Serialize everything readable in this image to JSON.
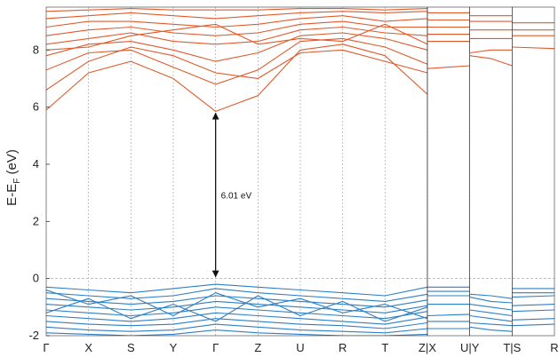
{
  "chart_data": {
    "type": "line",
    "ylabel": {
      "main": "E-E",
      "sub": "F",
      "unit": " (eV)"
    },
    "ylim": [
      -2,
      9.5
    ],
    "yticks": [
      -2,
      0,
      2,
      4,
      6,
      8
    ],
    "fermi_level": 0,
    "grid": "dashed vertical lines at high-symmetry points; dashed horizontal line at 0",
    "kpoints": [
      "Γ",
      "X",
      "S",
      "Y",
      "Γ",
      "Z",
      "U",
      "R",
      "T",
      "Z|X",
      "U|Y",
      "T|S",
      "R"
    ],
    "panels": [
      {
        "x_range": [
          0,
          9
        ]
      },
      {
        "x_range": [
          9,
          10
        ]
      },
      {
        "x_range": [
          10,
          11
        ]
      },
      {
        "x_range": [
          11,
          12
        ]
      }
    ],
    "gap_annotation": {
      "label": "6.01 eV",
      "x": 4,
      "from": 0,
      "to": 5.85
    },
    "colors": {
      "conduction": "#e05a2b",
      "valence": "#2e7fc4",
      "axis": "#333333",
      "grid": "#aaaaaa"
    },
    "series": [
      {
        "band": "conduction",
        "x": [
          0,
          1,
          2,
          3,
          4,
          5,
          6,
          7,
          8,
          9
        ],
        "y": [
          5.9,
          7.2,
          7.6,
          7.0,
          5.85,
          6.4,
          8.0,
          8.2,
          7.8,
          6.45
        ]
      },
      {
        "band": "conduction",
        "x": [
          0,
          1,
          2,
          3,
          4,
          5,
          6,
          7,
          8,
          9
        ],
        "y": [
          7.3,
          7.9,
          8.0,
          7.4,
          6.8,
          7.3,
          8.3,
          8.4,
          8.1,
          7.5
        ]
      },
      {
        "band": "conduction",
        "x": [
          0,
          1,
          2,
          3,
          4,
          5,
          6,
          7,
          8,
          9
        ],
        "y": [
          7.8,
          8.2,
          8.3,
          8.0,
          7.6,
          7.9,
          8.5,
          8.6,
          8.4,
          8.0
        ]
      },
      {
        "band": "conduction",
        "x": [
          0,
          1,
          2,
          3,
          4,
          5,
          6,
          7,
          8,
          9
        ],
        "y": [
          8.2,
          8.4,
          8.6,
          8.3,
          8.2,
          8.3,
          8.7,
          8.8,
          8.6,
          8.5
        ]
      },
      {
        "band": "conduction",
        "x": [
          0,
          1,
          2,
          3,
          4,
          5,
          6,
          7,
          8,
          9
        ],
        "y": [
          8.5,
          8.7,
          8.8,
          8.6,
          8.5,
          8.6,
          8.9,
          9.0,
          8.8,
          8.8
        ]
      },
      {
        "band": "conduction",
        "x": [
          0,
          1,
          2,
          3,
          4,
          5,
          6,
          7,
          8,
          9
        ],
        "y": [
          8.8,
          9.0,
          9.0,
          8.9,
          8.8,
          8.9,
          9.1,
          9.2,
          9.0,
          9.1
        ]
      },
      {
        "band": "conduction",
        "x": [
          0,
          1,
          2,
          3,
          4,
          5,
          6,
          7,
          8,
          9
        ],
        "y": [
          9.1,
          9.2,
          9.3,
          9.2,
          9.1,
          9.2,
          9.3,
          9.35,
          9.3,
          9.35
        ]
      },
      {
        "band": "conduction",
        "x": [
          0,
          1,
          2,
          3,
          4,
          5,
          6,
          7,
          8,
          9
        ],
        "y": [
          9.35,
          9.4,
          9.45,
          9.4,
          9.4,
          9.4,
          9.45,
          9.45,
          9.4,
          9.45
        ]
      },
      {
        "band": "conduction",
        "x": [
          0,
          1,
          2,
          3,
          4,
          5,
          6,
          7,
          8,
          9
        ],
        "y": [
          6.6,
          7.6,
          8.1,
          7.8,
          7.2,
          7.0,
          7.9,
          8.0,
          7.6,
          7.2
        ]
      },
      {
        "band": "conduction",
        "x": [
          0,
          1,
          2,
          3,
          4,
          5,
          6,
          7,
          8,
          9
        ],
        "y": [
          8.0,
          8.1,
          8.5,
          8.7,
          8.9,
          8.2,
          8.4,
          8.3,
          8.9,
          8.2
        ]
      },
      {
        "band": "conduction",
        "x": [
          9,
          10
        ],
        "y": [
          7.35,
          7.45
        ]
      },
      {
        "band": "conduction",
        "x": [
          9,
          10
        ],
        "y": [
          8.3,
          8.3
        ]
      },
      {
        "band": "conduction",
        "x": [
          9,
          10
        ],
        "y": [
          8.55,
          8.55
        ]
      },
      {
        "band": "conduction",
        "x": [
          9,
          10
        ],
        "y": [
          8.8,
          8.8
        ]
      },
      {
        "band": "conduction",
        "x": [
          9,
          10
        ],
        "y": [
          9.05,
          9.05
        ]
      },
      {
        "band": "conduction",
        "x": [
          9,
          10
        ],
        "y": [
          9.3,
          9.3
        ]
      },
      {
        "band": "conduction",
        "x": [
          10,
          10.5,
          11
        ],
        "y": [
          7.8,
          7.7,
          7.45
        ]
      },
      {
        "band": "conduction",
        "x": [
          10,
          10.5,
          11
        ],
        "y": [
          7.9,
          8.0,
          8.0
        ]
      },
      {
        "band": "conduction",
        "x": [
          10,
          10.5,
          11
        ],
        "y": [
          8.4,
          8.4,
          8.4
        ]
      },
      {
        "band": "conduction",
        "x": [
          10,
          10.5,
          11
        ],
        "y": [
          8.7,
          8.7,
          8.7
        ]
      },
      {
        "band": "conduction",
        "x": [
          10,
          10.5,
          11
        ],
        "y": [
          9.0,
          9.0,
          9.0
        ]
      },
      {
        "band": "conduction",
        "x": [
          10,
          10.5,
          11
        ],
        "y": [
          9.2,
          9.2,
          9.2
        ]
      },
      {
        "band": "conduction",
        "x": [
          11,
          12
        ],
        "y": [
          8.1,
          8.05
        ]
      },
      {
        "band": "conduction",
        "x": [
          11,
          12
        ],
        "y": [
          8.5,
          8.5
        ]
      },
      {
        "band": "conduction",
        "x": [
          11,
          12
        ],
        "y": [
          8.7,
          8.7
        ]
      },
      {
        "band": "conduction",
        "x": [
          11,
          12
        ],
        "y": [
          8.95,
          8.95
        ]
      },
      {
        "band": "valence",
        "x": [
          0,
          1,
          2,
          3,
          4,
          5,
          6,
          7,
          8,
          9
        ],
        "y": [
          -0.3,
          -0.4,
          -0.5,
          -0.35,
          -0.2,
          -0.3,
          -0.4,
          -0.5,
          -0.6,
          -0.3
        ]
      },
      {
        "band": "valence",
        "x": [
          0,
          1,
          2,
          3,
          4,
          5,
          6,
          7,
          8,
          9
        ],
        "y": [
          -0.5,
          -0.6,
          -0.7,
          -0.6,
          -0.35,
          -0.5,
          -0.6,
          -0.7,
          -0.8,
          -0.55
        ]
      },
      {
        "band": "valence",
        "x": [
          0,
          1,
          2,
          3,
          4,
          5,
          6,
          7,
          8,
          9
        ],
        "y": [
          -0.7,
          -0.8,
          -0.9,
          -0.8,
          -0.6,
          -0.7,
          -0.8,
          -0.9,
          -1.0,
          -0.75
        ]
      },
      {
        "band": "valence",
        "x": [
          0,
          1,
          2,
          3,
          4,
          5,
          6,
          7,
          8,
          9
        ],
        "y": [
          -0.9,
          -1.0,
          -1.1,
          -1.0,
          -0.8,
          -0.9,
          -1.0,
          -1.1,
          -1.2,
          -0.95
        ]
      },
      {
        "band": "valence",
        "x": [
          0,
          1,
          2,
          3,
          4,
          5,
          6,
          7,
          8,
          9
        ],
        "y": [
          -1.1,
          -1.2,
          -1.3,
          -1.2,
          -1.0,
          -1.1,
          -1.2,
          -1.3,
          -1.4,
          -1.15
        ]
      },
      {
        "band": "valence",
        "x": [
          0,
          1,
          2,
          3,
          4,
          5,
          6,
          7,
          8,
          9
        ],
        "y": [
          -1.3,
          -1.4,
          -1.5,
          -1.4,
          -1.2,
          -1.3,
          -1.4,
          -1.5,
          -1.6,
          -1.35
        ]
      },
      {
        "band": "valence",
        "x": [
          0,
          1,
          2,
          3,
          4,
          5,
          6,
          7,
          8,
          9
        ],
        "y": [
          -1.5,
          -1.6,
          -1.65,
          -1.6,
          -1.4,
          -1.5,
          -1.6,
          -1.65,
          -1.75,
          -1.55
        ]
      },
      {
        "band": "valence",
        "x": [
          0,
          1,
          2,
          3,
          4,
          5,
          6,
          7,
          8,
          9
        ],
        "y": [
          -1.7,
          -1.8,
          -1.85,
          -1.8,
          -1.6,
          -1.7,
          -1.8,
          -1.85,
          -1.9,
          -1.75
        ]
      },
      {
        "band": "valence",
        "x": [
          0,
          1,
          2,
          3,
          4,
          5,
          6,
          7,
          8,
          9
        ],
        "y": [
          -1.9,
          -1.95,
          -2.0,
          -1.95,
          -1.8,
          -1.9,
          -1.95,
          -2.0,
          -2.0,
          -1.95
        ]
      },
      {
        "band": "valence",
        "x": [
          0,
          1,
          2,
          3,
          4,
          5,
          6,
          7,
          8,
          9
        ],
        "y": [
          -0.4,
          -0.9,
          -0.6,
          -1.3,
          -0.5,
          -1.0,
          -0.7,
          -1.2,
          -0.9,
          -1.4
        ]
      },
      {
        "band": "valence",
        "x": [
          0,
          1,
          2,
          3,
          4,
          5,
          6,
          7,
          8,
          9
        ],
        "y": [
          -1.2,
          -0.7,
          -1.4,
          -0.9,
          -1.5,
          -0.6,
          -1.3,
          -0.8,
          -1.5,
          -1.0
        ]
      },
      {
        "band": "valence",
        "x": [
          9,
          10
        ],
        "y": [
          -0.3,
          -0.3
        ]
      },
      {
        "band": "valence",
        "x": [
          9,
          10
        ],
        "y": [
          -0.45,
          -0.45
        ]
      },
      {
        "band": "valence",
        "x": [
          9,
          10
        ],
        "y": [
          -0.6,
          -0.6
        ]
      },
      {
        "band": "valence",
        "x": [
          9,
          10
        ],
        "y": [
          -0.9,
          -0.9
        ]
      },
      {
        "band": "valence",
        "x": [
          9,
          10
        ],
        "y": [
          -1.3,
          -1.25
        ]
      },
      {
        "band": "valence",
        "x": [
          9,
          10
        ],
        "y": [
          -1.5,
          -1.5
        ]
      },
      {
        "band": "valence",
        "x": [
          9,
          10
        ],
        "y": [
          -1.75,
          -1.75
        ]
      },
      {
        "band": "valence",
        "x": [
          10,
          10.5,
          11
        ],
        "y": [
          -0.55,
          -0.6,
          -0.7
        ]
      },
      {
        "band": "valence",
        "x": [
          10,
          10.5,
          11
        ],
        "y": [
          -0.65,
          -0.8,
          -0.85
        ]
      },
      {
        "band": "valence",
        "x": [
          10,
          10.5,
          11
        ],
        "y": [
          -0.9,
          -1.0,
          -1.1
        ]
      },
      {
        "band": "valence",
        "x": [
          10,
          10.5,
          11
        ],
        "y": [
          -1.1,
          -1.2,
          -1.3
        ]
      },
      {
        "band": "valence",
        "x": [
          10,
          10.5,
          11
        ],
        "y": [
          -1.3,
          -1.4,
          -1.5
        ]
      },
      {
        "band": "valence",
        "x": [
          10,
          10.5,
          11
        ],
        "y": [
          -1.55,
          -1.6,
          -1.65
        ]
      },
      {
        "band": "valence",
        "x": [
          10,
          10.5,
          11
        ],
        "y": [
          -1.7,
          -1.8,
          -1.85
        ]
      },
      {
        "band": "valence",
        "x": [
          11,
          12
        ],
        "y": [
          -0.35,
          -0.35
        ]
      },
      {
        "band": "valence",
        "x": [
          11,
          12
        ],
        "y": [
          -0.5,
          -0.5
        ]
      },
      {
        "band": "valence",
        "x": [
          11,
          12
        ],
        "y": [
          -0.65,
          -0.6
        ]
      },
      {
        "band": "valence",
        "x": [
          11,
          12
        ],
        "y": [
          -0.95,
          -0.9
        ]
      },
      {
        "band": "valence",
        "x": [
          11,
          12
        ],
        "y": [
          -1.15,
          -1.1
        ]
      },
      {
        "band": "valence",
        "x": [
          11,
          12
        ],
        "y": [
          -1.45,
          -1.4
        ]
      },
      {
        "band": "valence",
        "x": [
          11,
          12
        ],
        "y": [
          -1.65,
          -1.6
        ]
      }
    ]
  }
}
